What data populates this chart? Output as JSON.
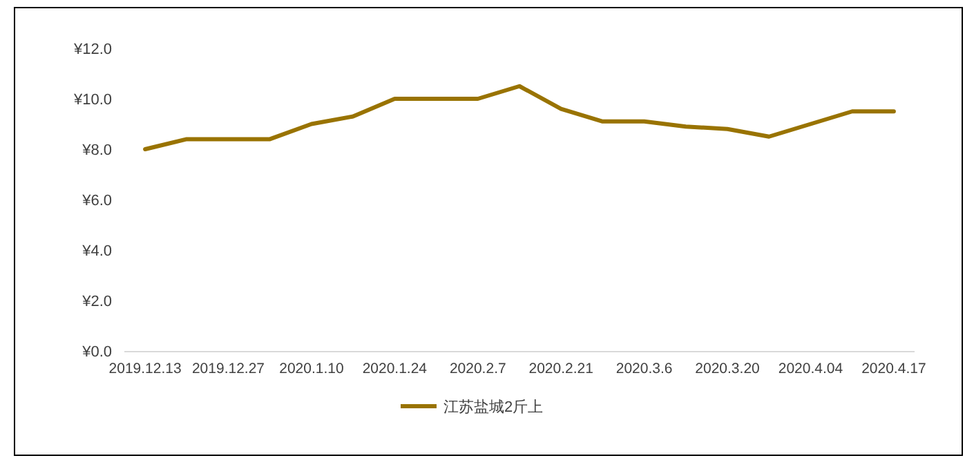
{
  "chart_data": {
    "type": "line",
    "categories": [
      "2019.12.13",
      null,
      "2019.12.27",
      null,
      "2020.1.10",
      null,
      "2020.1.24",
      null,
      "2020.2.7",
      null,
      "2020.2.21",
      null,
      "2020.3.6",
      null,
      "2020.3.20",
      null,
      "2020.4.04",
      null,
      "2020.4.17"
    ],
    "series": [
      {
        "name": "江苏盐城2斤上",
        "color": "#997300",
        "values": [
          8.0,
          8.4,
          8.4,
          8.4,
          9.0,
          9.3,
          10.0,
          10.0,
          10.0,
          10.5,
          9.6,
          9.1,
          9.1,
          8.9,
          8.8,
          8.5,
          9.0,
          9.5,
          9.5
        ]
      }
    ],
    "ylim": [
      0,
      12
    ],
    "yticks": [
      {
        "value": 0,
        "label": "¥0.0"
      },
      {
        "value": 2,
        "label": "¥2.0"
      },
      {
        "value": 4,
        "label": "¥4.0"
      },
      {
        "value": 6,
        "label": "¥6.0"
      },
      {
        "value": 8,
        "label": "¥8.0"
      },
      {
        "value": 10,
        "label": "¥10.0"
      },
      {
        "value": 12,
        "label": "¥12.0"
      }
    ],
    "grid": false,
    "legend": "bottom",
    "marker": "none",
    "line_style": "solid"
  }
}
